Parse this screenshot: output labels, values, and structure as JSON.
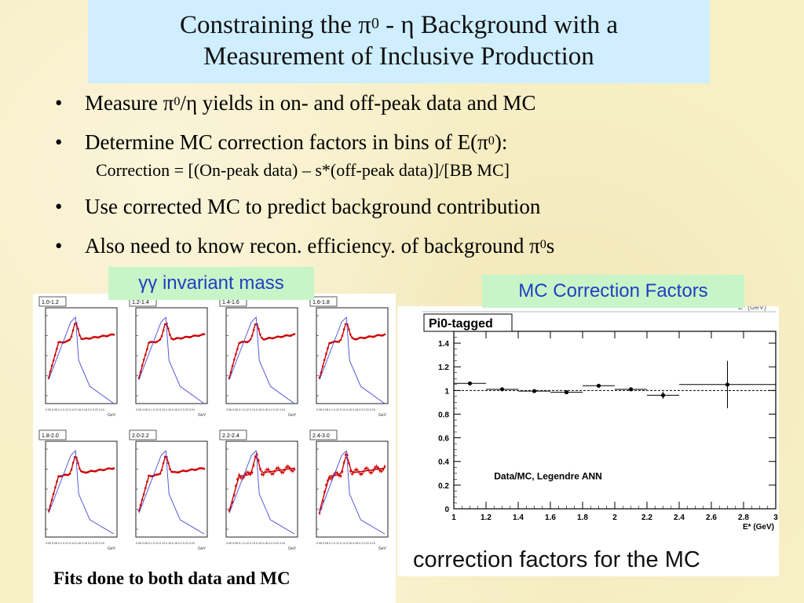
{
  "slide": {
    "title_line1": "Constraining the π",
    "title_sup": "0",
    "title_line1_rest": " - η Background with a",
    "title_line2": "Measurement of Inclusive Production",
    "bullets": [
      {
        "pre": "Measure π",
        "sup": "0",
        "post": "/η yields in on- and off-peak data and MC"
      },
      {
        "pre": "Determine MC correction factors in bins of E(π",
        "sup": "0",
        "post": "):"
      },
      {
        "pre": "Use corrected MC to predict background contribution",
        "sup": "",
        "post": ""
      },
      {
        "pre": "Also need to know recon. efficiency. of background π",
        "sup": "0",
        "post": "s"
      }
    ],
    "subbullet": "Correction = [(On-peak data) – s*(off-peak data)]/[BB MC]",
    "bullet_char": "•",
    "label_gg": "γγ invariant mass",
    "label_mc": "MC Correction Factors",
    "fits_caption": "Fits done to both data and MC",
    "right_caption": "correction factors for the MC"
  },
  "mini_plots": {
    "bins": [
      "1.0-1.2",
      "1.2-1.4",
      "1.4-1.6",
      "1.6-1.8",
      "1.8-2.0",
      "2.0-2.2",
      "2.2-2.4",
      "2.4-3.0"
    ],
    "xunit": "GeV",
    "xticks": "0.06 0.08 0.1 0.12 0.14 0.16 0.18 0.2 0.22 0.24",
    "data_color": "#cc0000",
    "fit_color": "#4a4ad8"
  },
  "chart_data": {
    "type": "scatter",
    "title": "Pi0-tagged",
    "annotation": "Data/MC, Legendre ANN",
    "xlabel": "E* (GeV)",
    "top_axis_label": "E* (GeV)",
    "xlim": [
      1,
      3
    ],
    "ylim": [
      0,
      1.5
    ],
    "xticks": [
      "1",
      "1.2",
      "1.4",
      "1.6",
      "1.8",
      "2",
      "2.2",
      "2.4",
      "2.6",
      "2.8",
      "3"
    ],
    "yticks": [
      "0",
      "0.2",
      "0.4",
      "0.6",
      "0.8",
      "1",
      "1.2",
      "1.4"
    ],
    "reference_line": 1.0,
    "points": [
      {
        "x": 1.1,
        "xerr": 0.1,
        "y": 1.06,
        "yerr": 0.01
      },
      {
        "x": 1.3,
        "xerr": 0.1,
        "y": 1.01,
        "yerr": 0.01
      },
      {
        "x": 1.5,
        "xerr": 0.1,
        "y": 0.995,
        "yerr": 0.01
      },
      {
        "x": 1.7,
        "xerr": 0.1,
        "y": 0.985,
        "yerr": 0.01
      },
      {
        "x": 1.9,
        "xerr": 0.1,
        "y": 1.04,
        "yerr": 0.015
      },
      {
        "x": 2.1,
        "xerr": 0.1,
        "y": 1.01,
        "yerr": 0.015
      },
      {
        "x": 2.3,
        "xerr": 0.1,
        "y": 0.96,
        "yerr": 0.03
      },
      {
        "x": 2.7,
        "xerr": 0.3,
        "y": 1.05,
        "yerr": 0.2
      }
    ]
  }
}
